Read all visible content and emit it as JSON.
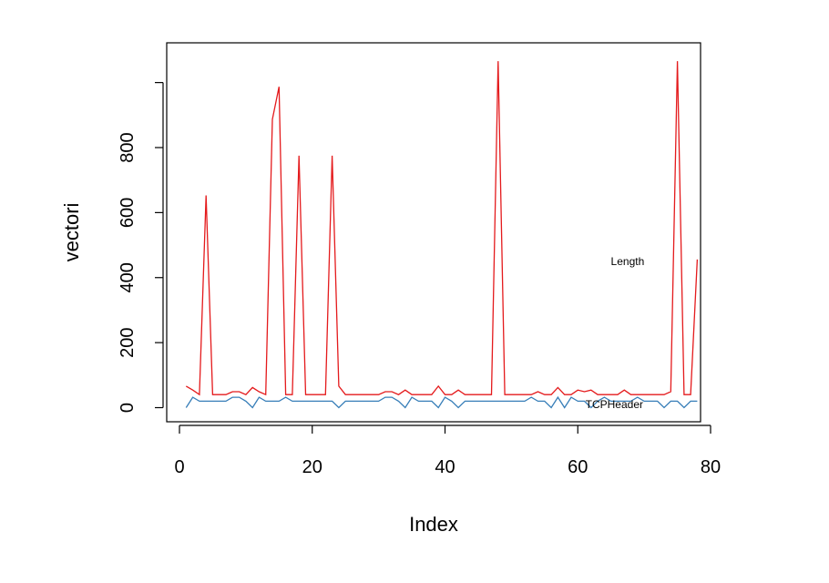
{
  "chart_data": {
    "type": "line",
    "xlabel": "Index",
    "ylabel": "vectori",
    "xlim": [
      1,
      78
    ],
    "ylim": [
      0,
      1000
    ],
    "x_ticks": [
      0,
      20,
      40,
      60,
      80
    ],
    "y_ticks": [
      0,
      200,
      400,
      600,
      800
    ],
    "grid": false,
    "series": [
      {
        "label": "Length",
        "color": "#e41a1c",
        "values": [
          66,
          54,
          40,
          653,
          40,
          40,
          40,
          49,
          49,
          40,
          62,
          49,
          40,
          887,
          987,
          40,
          40,
          775,
          40,
          40,
          40,
          40,
          775,
          66,
          40,
          40,
          40,
          40,
          40,
          40,
          49,
          49,
          40,
          54,
          40,
          40,
          40,
          40,
          66,
          40,
          40,
          54,
          40,
          40,
          40,
          40,
          40,
          1066,
          40,
          40,
          40,
          40,
          40,
          49,
          40,
          40,
          62,
          40,
          40,
          54,
          49,
          54,
          40,
          40,
          40,
          40,
          54,
          40,
          40,
          40,
          40,
          40,
          40,
          49,
          1066,
          40,
          40,
          456
        ]
      },
      {
        "label": "TCPHeader",
        "color": "#377eb8",
        "values": [
          0,
          32,
          20,
          20,
          20,
          20,
          20,
          32,
          32,
          20,
          0,
          32,
          20,
          20,
          20,
          32,
          20,
          20,
          20,
          20,
          20,
          20,
          20,
          0,
          20,
          20,
          20,
          20,
          20,
          20,
          32,
          32,
          20,
          0,
          32,
          20,
          20,
          20,
          0,
          32,
          20,
          0,
          20,
          20,
          20,
          20,
          20,
          20,
          20,
          20,
          20,
          20,
          32,
          20,
          20,
          0,
          32,
          0,
          32,
          20,
          20,
          0,
          20,
          32,
          20,
          20,
          20,
          20,
          32,
          20,
          20,
          20,
          0,
          20,
          20,
          0,
          20,
          20
        ]
      }
    ],
    "annotations": [
      {
        "text": "Length",
        "x": 67.5,
        "y": 450
      },
      {
        "text": "TCPHeader",
        "x": 65.5,
        "y": 10
      }
    ]
  }
}
